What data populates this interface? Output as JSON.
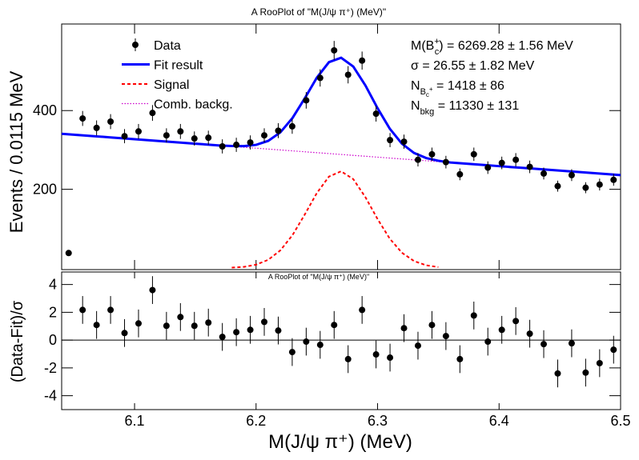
{
  "chart_data": [
    {
      "type": "line",
      "title": "A RooPlot of \"M(J/ψ π⁺) (MeV)\"",
      "x_label": "M(J/ψ π⁺) (MeV)",
      "y_label": "Events / 0.0115 MeV",
      "xlim": [
        6.04,
        6.5
      ],
      "ylim": [
        0,
        620
      ],
      "xticks": [
        6.1,
        6.2,
        6.3,
        6.4,
        6.5
      ],
      "yticks": [
        200,
        400
      ],
      "series": [
        {
          "name": "Data",
          "kind": "points",
          "color": "#000000",
          "x": [
            6.04575,
            6.05725,
            6.06875,
            6.08025,
            6.09175,
            6.10325,
            6.11475,
            6.12625,
            6.13775,
            6.14925,
            6.16075,
            6.17225,
            6.18375,
            6.19525,
            6.20675,
            6.21825,
            6.22975,
            6.24125,
            6.25275,
            6.26425,
            6.27575,
            6.28725,
            6.29875,
            6.31025,
            6.32175,
            6.33325,
            6.34475,
            6.35625,
            6.36775,
            6.37925,
            6.39075,
            6.40225,
            6.41375,
            6.42525,
            6.43675,
            6.44825,
            6.45975,
            6.47125,
            6.48275,
            6.49425
          ],
          "values": [
            38,
            380,
            356,
            372,
            335,
            347,
            394,
            337,
            347,
            329,
            331,
            309,
            313,
            319,
            337,
            349,
            360,
            426,
            483,
            553,
            491,
            527,
            392,
            325,
            321,
            275,
            289,
            269,
            238,
            289,
            255,
            267,
            275,
            257,
            240,
            208,
            236,
            204,
            212,
            224
          ],
          "errors": [
            6,
            19,
            19,
            19,
            18,
            19,
            20,
            18,
            19,
            18,
            18,
            18,
            18,
            18,
            18,
            19,
            19,
            21,
            22,
            24,
            22,
            23,
            20,
            18,
            18,
            17,
            17,
            16,
            15,
            17,
            16,
            16,
            17,
            16,
            15,
            14,
            15,
            14,
            15,
            15
          ]
        },
        {
          "name": "Fit result",
          "kind": "line",
          "dash": "solid",
          "color": "#0000ff",
          "x": [
            6.04,
            6.05,
            6.06,
            6.07,
            6.08,
            6.09,
            6.1,
            6.11,
            6.12,
            6.13,
            6.14,
            6.15,
            6.16,
            6.17,
            6.18,
            6.19,
            6.2,
            6.21,
            6.22,
            6.23,
            6.24,
            6.25,
            6.26,
            6.27,
            6.28,
            6.29,
            6.3,
            6.31,
            6.32,
            6.33,
            6.34,
            6.35,
            6.36,
            6.37,
            6.38,
            6.39,
            6.4,
            6.41,
            6.42,
            6.43,
            6.44,
            6.45,
            6.46,
            6.47,
            6.48,
            6.49,
            6.5
          ],
          "values": [
            341.0,
            338.7,
            336.4,
            334.2,
            331.9,
            329.6,
            327.3,
            325.0,
            322.7,
            320.5,
            318.2,
            315.9,
            313.6,
            311.3,
            309.9,
            309.7,
            312.9,
            323.0,
            344.7,
            381.2,
            430.8,
            483.5,
            523.1,
            534.3,
            512.0,
            463.8,
            406.0,
            354.1,
            316.0,
            292.4,
            279.4,
            272.5,
            268.0,
            265.7,
            263.4,
            261.1,
            258.8,
            256.5,
            254.3,
            252.0,
            249.7,
            247.4,
            245.1,
            242.8,
            240.6,
            238.3,
            236.0
          ]
        },
        {
          "name": "Signal",
          "kind": "line",
          "dash": "dashed",
          "color": "#ff0000",
          "x": [
            6.18,
            6.19,
            6.2,
            6.21,
            6.22,
            6.23,
            6.24,
            6.25,
            6.26,
            6.27,
            6.28,
            6.29,
            6.3,
            6.31,
            6.32,
            6.33,
            6.34,
            6.35
          ],
          "values": [
            0.9,
            2.9,
            8.4,
            20.8,
            44.8,
            83.6,
            135.5,
            190.4,
            232.3,
            245.8,
            225.8,
            179.9,
            124.4,
            74.7,
            38.9,
            17.6,
            6.9,
            2.3
          ]
        },
        {
          "name": "Comb. backg.",
          "kind": "line",
          "dash": "dotted",
          "color": "#cc00cc",
          "x": [
            6.04,
            6.5
          ],
          "values": [
            341.0,
            236.0
          ]
        }
      ],
      "annotations": [
        [
          {
            "t": "M(B"
          },
          {
            "t": "+",
            "pos": "sup"
          },
          {
            "t": "c",
            "pos": "sub"
          },
          {
            "t": ") = 6269.28 ± 1.56 MeV"
          }
        ],
        [
          {
            "t": "σ = 26.55 ± 1.82 MeV"
          }
        ],
        [
          {
            "t": "N"
          },
          {
            "t": "B",
            "pos": "sub"
          },
          {
            "t": "c",
            "pos": "subsub"
          },
          {
            "t": "+",
            "pos": "subsup"
          },
          {
            "t": " = 1418 ± 86"
          }
        ],
        [
          {
            "t": "N"
          },
          {
            "t": "bkg",
            "pos": "sub"
          },
          {
            "t": " = 11330 ± 131"
          }
        ]
      ]
    },
    {
      "type": "scatter",
      "title": "A RooPlot of \"M(J/ψ π⁺) (MeV)\"",
      "y_label": "(Data-Fit)/σ",
      "xlim": [
        6.04,
        6.5
      ],
      "ylim": [
        -5,
        4.9
      ],
      "xticks": [
        6.1,
        6.2,
        6.3,
        6.4,
        6.5
      ],
      "yticks": [
        -4,
        -2,
        0,
        2,
        4
      ],
      "hline": 0,
      "series": [
        {
          "kind": "points",
          "color": "#000000",
          "x": [
            6.04575,
            6.05725,
            6.06875,
            6.08025,
            6.09175,
            6.10325,
            6.11475,
            6.12625,
            6.13775,
            6.14925,
            6.16075,
            6.17225,
            6.18375,
            6.19525,
            6.20675,
            6.21825,
            6.22975,
            6.24125,
            6.25275,
            6.26425,
            6.27575,
            6.28725,
            6.29875,
            6.31025,
            6.32175,
            6.33325,
            6.34475,
            6.35625,
            6.36775,
            6.37925,
            6.39075,
            6.40225,
            6.41375,
            6.42525,
            6.43675,
            6.44825,
            6.45975,
            6.47125,
            6.48275,
            6.49425
          ],
          "values": [
            null,
            2.17,
            1.09,
            2.17,
            0.51,
            1.2,
            3.6,
            1.03,
            1.66,
            1.03,
            1.26,
            0.23,
            0.57,
            0.74,
            1.31,
            0.69,
            -0.86,
            -0.11,
            -0.34,
            1.09,
            -1.37,
            2.17,
            -1.03,
            -1.26,
            0.86,
            -0.4,
            1.09,
            0.29,
            -1.37,
            1.77,
            -0.11,
            0.74,
            1.37,
            0.46,
            -0.29,
            -2.4,
            -0.23,
            -2.34,
            -1.66,
            -0.69
          ],
          "errors": [
            1,
            1,
            1,
            1,
            1,
            1,
            1,
            1,
            1,
            1,
            1,
            1,
            1,
            1,
            1,
            1,
            1,
            1,
            1,
            1,
            1,
            1,
            1,
            1,
            1,
            1,
            1,
            1,
            1,
            1,
            1,
            1,
            1,
            1,
            1,
            1,
            1,
            1,
            1,
            1
          ]
        }
      ]
    }
  ]
}
